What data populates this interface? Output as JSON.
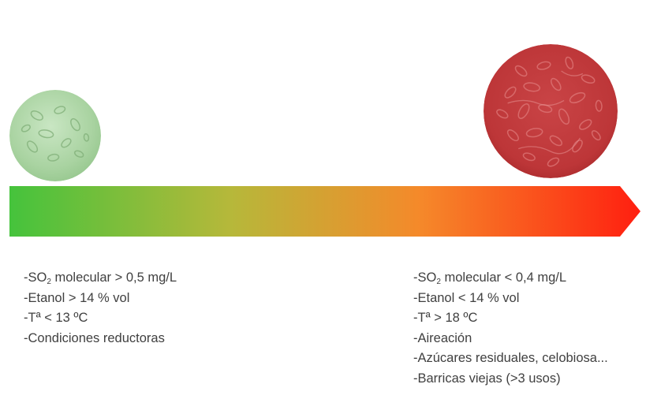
{
  "indicators": {
    "low_risk": {
      "color": "#a9d3a1",
      "conditions": [
        {
          "text": "-SO",
          "sub": "2",
          "rest": " molecular > 0,5 mg/L"
        },
        {
          "text": "-Etanol > 14 % vol"
        },
        {
          "text": "-Tª < 13 ºC"
        },
        {
          "text": "-Condiciones reductoras"
        }
      ]
    },
    "high_risk": {
      "color": "#c0393b",
      "conditions": [
        {
          "text": "-SO",
          "sub": "2",
          "rest": " molecular < 0,4 mg/L"
        },
        {
          "text": "-Etanol < 14 % vol"
        },
        {
          "text": "-Tª > 18 ºC"
        },
        {
          "text": "-Aireación"
        },
        {
          "text": "-Azúcares residuales, celobiosa..."
        },
        {
          "text": "-Barricas viejas (>3 usos)"
        }
      ]
    }
  },
  "gradient_arrow": {
    "colors": [
      "#45c33c",
      "#b6b83a",
      "#f5892a",
      "#ff1f10"
    ]
  }
}
